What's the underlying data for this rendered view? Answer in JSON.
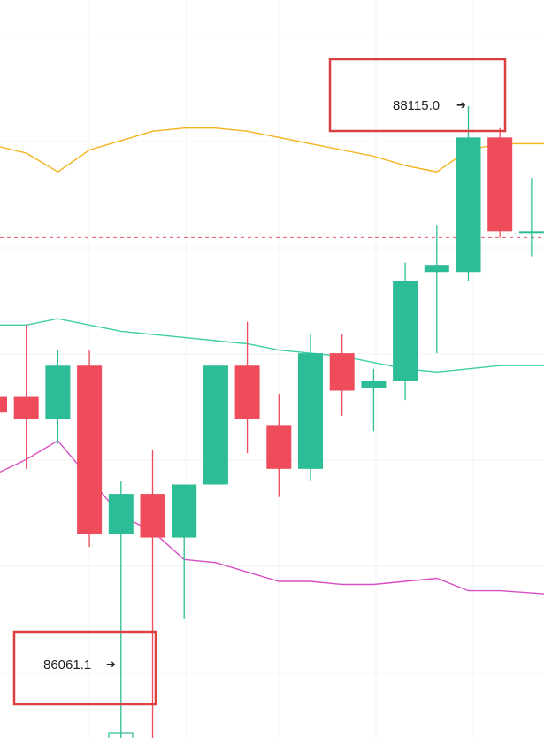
{
  "chart_data": {
    "type": "candlestick",
    "xlabel": "",
    "ylabel": "",
    "ylim": [
      85900,
      88270
    ],
    "grid": true,
    "colors": {
      "up": "#2dbd96",
      "down": "#ee4b5b",
      "upper_band": "#f5b21c",
      "middle_band": "#3fcfa6",
      "lower_band": "#d84fc2",
      "reference_line": "#e25a62",
      "annotation_box": "#d9403f"
    },
    "candles": [
      {
        "open": 87188,
        "close": 87138,
        "high": 87200,
        "low": 87100
      },
      {
        "open": 87188,
        "close": 87118,
        "high": 87418,
        "low": 86958
      },
      {
        "open": 87118,
        "close": 87288,
        "high": 87338,
        "low": 87038
      },
      {
        "open": 87288,
        "close": 86748,
        "high": 87338,
        "low": 86708
      },
      {
        "open": 86748,
        "close": 86878,
        "high": 86918,
        "low": 86058
      },
      {
        "open": 86878,
        "close": 86738,
        "high": 87018,
        "low": 86078
      },
      {
        "open": 86738,
        "close": 86908,
        "high": 86908,
        "low": 86478
      },
      {
        "open": 86908,
        "close": 87288,
        "high": 87288,
        "low": 86908
      },
      {
        "open": 87288,
        "close": 87118,
        "high": 87428,
        "low": 87008
      },
      {
        "open": 87098,
        "close": 86958,
        "high": 87198,
        "low": 86868
      },
      {
        "open": 86958,
        "close": 87328,
        "high": 87388,
        "low": 86918
      },
      {
        "open": 87328,
        "close": 87208,
        "high": 87388,
        "low": 87128
      },
      {
        "open": 87218,
        "close": 87238,
        "high": 87278,
        "low": 87078
      },
      {
        "open": 87238,
        "close": 87558,
        "high": 87618,
        "low": 87178
      },
      {
        "open": 87588,
        "close": 87608,
        "high": 87738,
        "low": 87328
      },
      {
        "open": 87588,
        "close": 88018,
        "high": 88118,
        "low": 87558
      },
      {
        "open": 88018,
        "close": 87718,
        "high": 88048,
        "low": 87698
      },
      {
        "open": 87718,
        "close": 87718,
        "high": 87888,
        "low": 87638
      }
    ],
    "upper_band": [
      87988,
      87968,
      87908,
      87978,
      88008,
      88038,
      88048,
      88048,
      88038,
      88018,
      87998,
      87978,
      87958,
      87928,
      87908,
      87978,
      87998,
      87998
    ],
    "middle_band": [
      87418,
      87418,
      87438,
      87418,
      87398,
      87388,
      87378,
      87368,
      87358,
      87338,
      87328,
      87318,
      87298,
      87278,
      87268,
      87278,
      87288,
      87288
    ],
    "lower_band": [
      86948,
      86988,
      87048,
      86928,
      86808,
      86758,
      86668,
      86658,
      86628,
      86598,
      86598,
      86588,
      86588,
      86598,
      86608,
      86568,
      86568,
      86558
    ],
    "reference_line": 87698,
    "annotations": [
      {
        "text": "88115.0",
        "arrow": "➔",
        "value": 88115.0
      },
      {
        "text": "86061.1",
        "arrow": "➔",
        "value": 86061.1
      }
    ]
  }
}
